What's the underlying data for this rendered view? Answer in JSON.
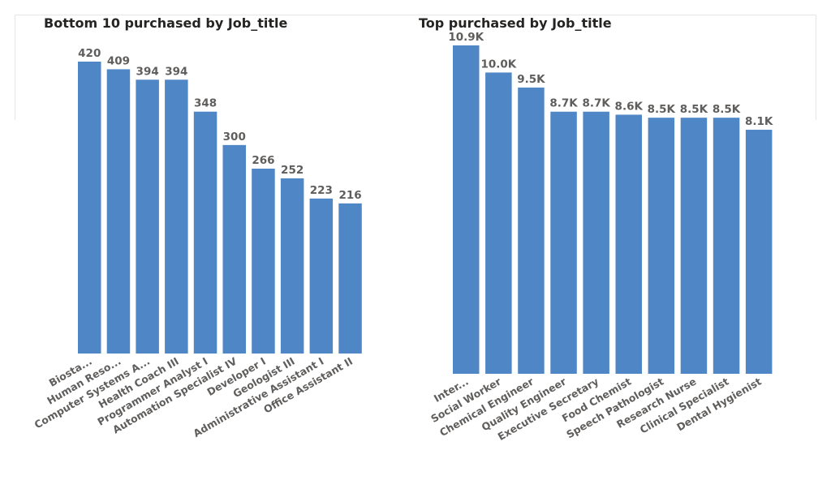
{
  "chart_data": [
    {
      "type": "bar",
      "title": "Bottom 10 purchased by Job_title",
      "categories": [
        "Biosta...",
        "Human Reso...",
        "Computer Systems A...",
        "Health Coach III",
        "Programmer Analyst I",
        "Automation Specialist IV",
        "Developer I",
        "Geologist III",
        "Administrative Assistant I",
        "Office Assistant II"
      ],
      "values": [
        420,
        409,
        394,
        394,
        348,
        300,
        266,
        252,
        223,
        216
      ],
      "value_labels": [
        "420",
        "409",
        "394",
        "394",
        "348",
        "300",
        "266",
        "252",
        "223",
        "216"
      ],
      "ylim": [
        0,
        420
      ],
      "grid": false,
      "bar_color": "#4f86c6"
    },
    {
      "type": "bar",
      "title": "Top purchased by Job_title",
      "categories": [
        "Inter...",
        "Social Worker",
        "Chemical Engineer",
        "Quality Engineer",
        "Executive Secretary",
        "Food Chemist",
        "Speech Pathologist",
        "Research Nurse",
        "Clinical Specialist",
        "Dental Hygienist"
      ],
      "values": [
        10900,
        10000,
        9500,
        8700,
        8700,
        8600,
        8500,
        8500,
        8500,
        8100
      ],
      "value_labels": [
        "10.9K",
        "10.0K",
        "9.5K",
        "8.7K",
        "8.7K",
        "8.6K",
        "8.5K",
        "8.5K",
        "8.5K",
        "8.1K"
      ],
      "ylim": [
        0,
        10900
      ],
      "grid": false,
      "bar_color": "#4f86c6"
    }
  ]
}
